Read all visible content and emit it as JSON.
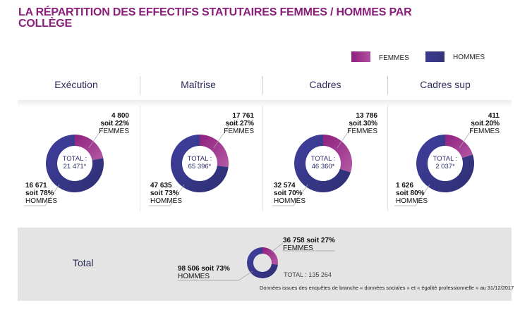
{
  "title": "LA RÉPARTITION DES EFFECTIFS STATUTAIRES FEMMES / HOMMES PAR COLLÈGE",
  "legend": [
    {
      "label": "FEMMES",
      "color": "#8e1f7f"
    },
    {
      "label": "HOMMES",
      "color": "#3b3b8f"
    }
  ],
  "chart_data": {
    "type": "pie",
    "categories": [
      "Exécution",
      "Maîtrise",
      "Cadres",
      "Cadres sup"
    ],
    "series": [
      {
        "name": "FEMMES",
        "values": [
          4800,
          17761,
          13786,
          411
        ],
        "percent": [
          22,
          27,
          30,
          20
        ]
      },
      {
        "name": "HOMMES",
        "values": [
          16671,
          47635,
          32574,
          1626
        ],
        "percent": [
          78,
          73,
          70,
          80
        ]
      }
    ],
    "charts": [
      {
        "name": "Exécution",
        "femmes": {
          "value": "4 800",
          "pct": "soit 22%",
          "label": "FEMMES",
          "share": 22
        },
        "hommes": {
          "value": "16 671",
          "pct": "soit 78%",
          "label": "HOMMES"
        },
        "total_label": "TOTAL :",
        "total": "21 471*"
      },
      {
        "name": "Maîtrise",
        "femmes": {
          "value": "17 761",
          "pct": "soit 27%",
          "label": "FEMMES",
          "share": 27
        },
        "hommes": {
          "value": "47 635",
          "pct": "soit 73%",
          "label": "HOMMES"
        },
        "total_label": "TOTAL :",
        "total": "65 396*"
      },
      {
        "name": "Cadres",
        "femmes": {
          "value": "13 786",
          "pct": "soit 30%",
          "label": "FEMMES",
          "share": 30
        },
        "hommes": {
          "value": "32 574",
          "pct": "soit 70%",
          "label": "HOMMES"
        },
        "total_label": "TOTAL :",
        "total": "46 360*"
      },
      {
        "name": "Cadres sup",
        "femmes": {
          "value": "411",
          "pct": "soit 20%",
          "label": "FEMMES",
          "share": 20
        },
        "hommes": {
          "value": "1 626",
          "pct": "soit 80%",
          "label": "HOMMES"
        },
        "total_label": "TOTAL :",
        "total": "2 037*"
      }
    ],
    "overall": {
      "name": "Total",
      "femmes": {
        "value": "36 758 soit 27%",
        "label": "FEMMES",
        "share": 27
      },
      "hommes": {
        "value": "98 506 soit 73%",
        "label": "HOMMES"
      },
      "total": "TOTAL :  135 264"
    }
  },
  "note": "Données issues des enquêtes de branche « données sociales » et « égalité professionnelle » au 31/12/2017"
}
